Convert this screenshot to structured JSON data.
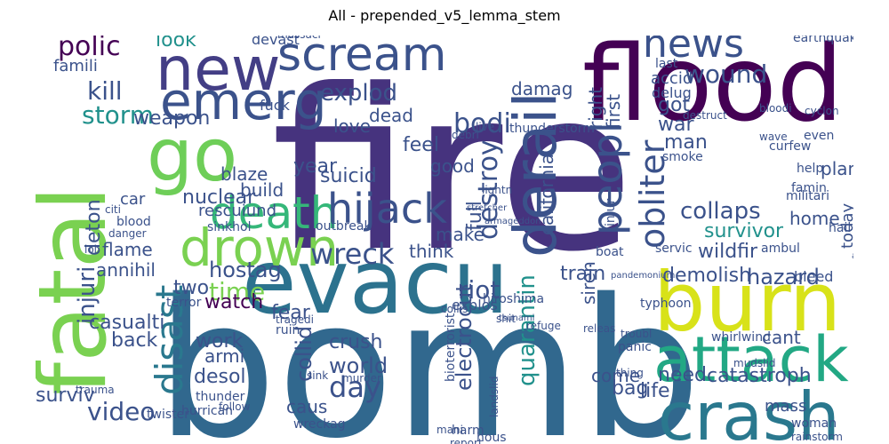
{
  "title": "All - prepended_v5_lemma_stem",
  "palette": [
    "#440154",
    "#482878",
    "#3e4989",
    "#31688e",
    "#26828e",
    "#1f9e89",
    "#35b779",
    "#6ece58",
    "#b5de2b",
    "#fde725"
  ],
  "words": [
    {
      "text": "fire",
      "color": "#46337e"
    },
    {
      "text": "bomb",
      "color": "#31688e"
    },
    {
      "text": "flood",
      "color": "#440154"
    },
    {
      "text": "fatal",
      "color": "#7ad151"
    },
    {
      "text": "evacu",
      "color": "#2c728e"
    },
    {
      "text": "burn",
      "color": "#d8e219"
    },
    {
      "text": "attack",
      "color": "#22a884"
    },
    {
      "text": "crash",
      "color": "#2a788e"
    },
    {
      "text": "go",
      "color": "#6ece58"
    },
    {
      "text": "new",
      "color": "#433e85"
    },
    {
      "text": "emerg",
      "color": "#3b528b"
    },
    {
      "text": "scream",
      "color": "#3b528b"
    },
    {
      "text": "news",
      "color": "#3b528b"
    },
    {
      "text": "death",
      "color": "#35b779"
    },
    {
      "text": "drown",
      "color": "#7ad151"
    },
    {
      "text": "hijack",
      "color": "#3b528b"
    },
    {
      "text": "derail",
      "color": "#3b528b"
    },
    {
      "text": "peopl",
      "color": "#3b528b"
    },
    {
      "text": "obliter",
      "color": "#3b528b"
    },
    {
      "text": "disast",
      "color": "#2a788e"
    },
    {
      "text": "wreck",
      "color": "#3b528b"
    },
    {
      "text": "collaps",
      "color": "#3b528b"
    },
    {
      "text": "survivor",
      "color": "#21918c"
    },
    {
      "text": "video",
      "color": "#3b528b"
    },
    {
      "text": "wound",
      "color": "#3b528b"
    },
    {
      "text": "storm",
      "color": "#21918c"
    },
    {
      "text": "weapon",
      "color": "#3b528b"
    },
    {
      "text": "kill",
      "color": "#3b528b"
    },
    {
      "text": "polic",
      "color": "#440154"
    },
    {
      "text": "look",
      "color": "#21918c"
    },
    {
      "text": "explod",
      "color": "#3b528b"
    },
    {
      "text": "bodi",
      "color": "#3b528b"
    },
    {
      "text": "destroy",
      "color": "#3b528b"
    },
    {
      "text": "injuri",
      "color": "#3b528b"
    },
    {
      "text": "hostag",
      "color": "#3b528b"
    },
    {
      "text": "time",
      "color": "#7ad151"
    },
    {
      "text": "riot",
      "color": "#3b528b"
    },
    {
      "text": "quarantin",
      "color": "#21918c"
    },
    {
      "text": "demolish",
      "color": "#3b528b"
    },
    {
      "text": "hazard",
      "color": "#3b528b"
    },
    {
      "text": "catastroph",
      "color": "#3b528b"
    },
    {
      "text": "electrocut",
      "color": "#3b528b"
    },
    {
      "text": "need",
      "color": "#3b528b"
    },
    {
      "text": "world",
      "color": "#3b528b"
    },
    {
      "text": "crush",
      "color": "#3b528b"
    },
    {
      "text": "day",
      "color": "#3b528b"
    },
    {
      "text": "watch",
      "color": "#440154"
    },
    {
      "text": "casualti",
      "color": "#3b528b"
    },
    {
      "text": "back",
      "color": "#3b528b"
    },
    {
      "text": "work",
      "color": "#3b528b"
    },
    {
      "text": "desol",
      "color": "#3b528b"
    },
    {
      "text": "armi",
      "color": "#3b528b"
    },
    {
      "text": "fear",
      "color": "#3b528b"
    },
    {
      "text": "collid",
      "color": "#3b528b"
    },
    {
      "text": "wildfir",
      "color": "#3b528b"
    },
    {
      "text": "suicid",
      "color": "#3b528b"
    },
    {
      "text": "year",
      "color": "#3b528b"
    },
    {
      "text": "nuclear",
      "color": "#3b528b"
    },
    {
      "text": "flame",
      "color": "#3b528b"
    },
    {
      "text": "annihil",
      "color": "#3b528b"
    },
    {
      "text": "two",
      "color": "#3b528b"
    },
    {
      "text": "make",
      "color": "#3b528b"
    },
    {
      "text": "think",
      "color": "#3b528b"
    },
    {
      "text": "full",
      "color": "#3b528b"
    },
    {
      "text": "train",
      "color": "#3b528b"
    },
    {
      "text": "love",
      "color": "#3b528b"
    },
    {
      "text": "dead",
      "color": "#3b528b"
    },
    {
      "text": "feel",
      "color": "#3b528b"
    },
    {
      "text": "good",
      "color": "#3b528b"
    },
    {
      "text": "california",
      "color": "#3b528b"
    },
    {
      "text": "rescuiund",
      "color": "#3b528b"
    },
    {
      "text": "blaze",
      "color": "#3b528b"
    },
    {
      "text": "build",
      "color": "#3b528b"
    },
    {
      "text": "man",
      "color": "#3b528b"
    },
    {
      "text": "war",
      "color": "#3b528b"
    },
    {
      "text": "got",
      "color": "#3b528b"
    },
    {
      "text": "accid",
      "color": "#3b528b"
    },
    {
      "text": "delug",
      "color": "#3b528b"
    },
    {
      "text": "damag",
      "color": "#3b528b"
    },
    {
      "text": "right",
      "color": "#3b528b"
    },
    {
      "text": "first",
      "color": "#3b528b"
    },
    {
      "text": "home",
      "color": "#3b528b"
    },
    {
      "text": "plan",
      "color": "#3b528b"
    },
    {
      "text": "today",
      "color": "#3b528b"
    },
    {
      "text": "life",
      "color": "#3b528b"
    },
    {
      "text": "bag",
      "color": "#3b528b"
    },
    {
      "text": "come",
      "color": "#3b528b"
    },
    {
      "text": "cant",
      "color": "#3b528b"
    },
    {
      "text": "siren",
      "color": "#3b528b"
    },
    {
      "text": "fuck",
      "color": "#3b528b"
    },
    {
      "text": "devast",
      "color": "#3b528b"
    },
    {
      "text": "famili",
      "color": "#3b528b"
    },
    {
      "text": "car",
      "color": "#3b528b"
    },
    {
      "text": "caus",
      "color": "#3b528b"
    },
    {
      "text": "mass",
      "color": "#3b528b"
    },
    {
      "text": "woman",
      "color": "#3b528b"
    },
    {
      "text": "wreckag",
      "color": "#3b528b"
    },
    {
      "text": "twister",
      "color": "#3b528b"
    },
    {
      "text": "explos",
      "color": "#3b528b"
    },
    {
      "text": "collis",
      "color": "#3b528b"
    },
    {
      "text": "terror",
      "color": "#3b528b"
    },
    {
      "text": "earthquak",
      "color": "#3b528b"
    },
    {
      "text": "bleed",
      "color": "#3b528b"
    },
    {
      "text": "ambul",
      "color": "#3b528b"
    },
    {
      "text": "windstorm",
      "color": "#3b528b"
    },
    {
      "text": "massacr",
      "color": "#3b528b"
    },
    {
      "text": "thunderstorm",
      "color": "#3b528b"
    },
    {
      "text": "hiroshima",
      "color": "#3b528b"
    },
    {
      "text": "curfew",
      "color": "#3b528b"
    },
    {
      "text": "militari",
      "color": "#3b528b"
    },
    {
      "text": "lightn",
      "color": "#3b528b"
    },
    {
      "text": "outbreak",
      "color": "#3b528b"
    },
    {
      "text": "sinkhol",
      "color": "#3b528b"
    },
    {
      "text": "tragedi",
      "color": "#3b528b"
    },
    {
      "text": "ruin",
      "color": "#3b528b"
    },
    {
      "text": "refuge",
      "color": "#3b528b"
    },
    {
      "text": "shit",
      "color": "#3b528b"
    },
    {
      "text": "releas",
      "color": "#3b528b"
    },
    {
      "text": "panic",
      "color": "#3b528b"
    },
    {
      "text": "whirlwind",
      "color": "#3b528b"
    },
    {
      "text": "mudslid",
      "color": "#3b528b"
    },
    {
      "text": "trauma",
      "color": "#3b528b"
    },
    {
      "text": "hurrican",
      "color": "#3b528b"
    },
    {
      "text": "thunder",
      "color": "#3b528b"
    },
    {
      "text": "famin",
      "color": "#3b528b"
    },
    {
      "text": "hail",
      "color": "#3b528b"
    },
    {
      "text": "help",
      "color": "#3b528b"
    },
    {
      "text": "servic",
      "color": "#3b528b"
    },
    {
      "text": "typhoon",
      "color": "#3b528b"
    },
    {
      "text": "danger",
      "color": "#3b528b"
    },
    {
      "text": "citi",
      "color": "#3b528b"
    },
    {
      "text": "blood",
      "color": "#3b528b"
    },
    {
      "text": "lol",
      "color": "#3b528b"
    },
    {
      "text": "smoke",
      "color": "#3b528b"
    },
    {
      "text": "debri",
      "color": "#3b528b"
    },
    {
      "text": "live",
      "color": "#3b528b"
    },
    {
      "text": "last",
      "color": "#3b528b"
    },
    {
      "text": "destruct",
      "color": "#3b528b"
    },
    {
      "text": "even",
      "color": "#3b528b"
    },
    {
      "text": "wave",
      "color": "#3b528b"
    },
    {
      "text": "bloodi",
      "color": "#3b528b"
    },
    {
      "text": "cyclon",
      "color": "#3b528b"
    },
    {
      "text": "injur",
      "color": "#3b528b"
    },
    {
      "text": "boat",
      "color": "#3b528b"
    },
    {
      "text": "sink",
      "color": "#3b528b"
    },
    {
      "text": "murder",
      "color": "#3b528b"
    },
    {
      "text": "bioterrorist",
      "color": "#3b528b"
    },
    {
      "text": "landslid",
      "color": "#3b528b"
    },
    {
      "text": "harm",
      "color": "#3b528b"
    },
    {
      "text": "hous",
      "color": "#3b528b"
    },
    {
      "text": "report",
      "color": "#3b528b"
    },
    {
      "text": "mani",
      "color": "#3b528b"
    },
    {
      "text": "troubl",
      "color": "#3b528b"
    },
    {
      "text": "follow",
      "color": "#3b528b"
    },
    {
      "text": "rainstorm",
      "color": "#3b528b"
    },
    {
      "text": "thing",
      "color": "#3b528b"
    },
    {
      "text": "stretcher",
      "color": "#3b528b"
    },
    {
      "text": "armageddon",
      "color": "#3b528b"
    },
    {
      "text": "pandemonium",
      "color": "#3b528b"
    },
    {
      "text": "tsunami",
      "color": "#3b528b"
    },
    {
      "text": "avalanch",
      "color": "#3b528b"
    },
    {
      "text": "annivers",
      "color": "#3b528b"
    },
    {
      "text": "deton",
      "color": "#3b528b"
    },
    {
      "text": "surviv",
      "color": "#3b528b"
    }
  ]
}
